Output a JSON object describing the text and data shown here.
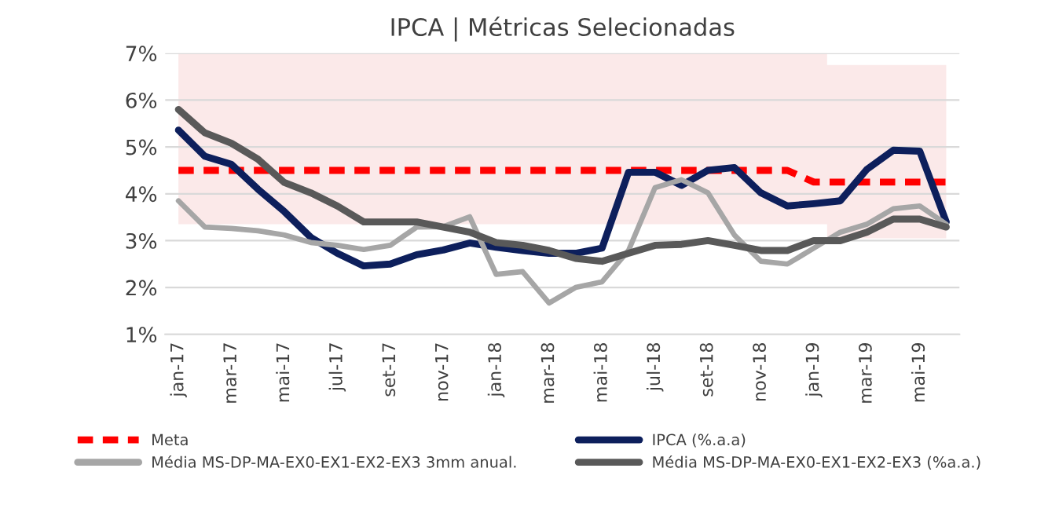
{
  "chart_data": {
    "type": "line",
    "title": "IPCA | Métricas Selecionadas",
    "categories": [
      "jan-17",
      null,
      "mar-17",
      null,
      "mai-17",
      null,
      "jul-17",
      null,
      "set-17",
      null,
      "nov-17",
      null,
      "jan-18",
      null,
      "mar-18",
      null,
      "mai-18",
      null,
      "jul-18",
      null,
      "set-18",
      null,
      "nov-18",
      null,
      "jan-19",
      null,
      "mar-19",
      null,
      "mai-19",
      null
    ],
    "series": [
      {
        "name": "Meta",
        "color": "#ff0000",
        "line_style": "dashed",
        "values": [
          4.5,
          4.5,
          4.5,
          4.5,
          4.5,
          4.5,
          4.5,
          4.5,
          4.5,
          4.5,
          4.5,
          4.5,
          4.5,
          4.5,
          4.5,
          4.5,
          4.5,
          4.5,
          4.5,
          4.5,
          4.5,
          4.5,
          4.5,
          4.5,
          4.25,
          4.25,
          4.25,
          4.25,
          4.25,
          4.25
        ],
        "lower": [
          3.35,
          3.35,
          3.35,
          3.35,
          3.35,
          3.35,
          3.35,
          3.35,
          3.35,
          3.35,
          3.35,
          3.35,
          3.35,
          3.35,
          3.35,
          3.35,
          3.35,
          3.35,
          3.35,
          3.35,
          3.35,
          3.35,
          3.35,
          3.35,
          3.35,
          3.05,
          3.05,
          3.05,
          3.05,
          3.05
        ],
        "upper": [
          7,
          7,
          7,
          7,
          7,
          7,
          7,
          7,
          7,
          7,
          7,
          7,
          7,
          7,
          7,
          7,
          7,
          7,
          7,
          7,
          7,
          7,
          7,
          7,
          7,
          6.75,
          6.75,
          6.75,
          6.75,
          6.75
        ]
      },
      {
        "name": "IPCA (%.a.a)",
        "color": "#0d1f5c",
        "line_style": "solid",
        "values": [
          5.36,
          4.8,
          4.63,
          4.1,
          3.62,
          3.07,
          2.73,
          2.46,
          2.5,
          2.7,
          2.8,
          2.95,
          2.86,
          2.79,
          2.73,
          2.73,
          2.84,
          4.46,
          4.46,
          4.18,
          4.5,
          4.56,
          4.02,
          3.74,
          3.79,
          3.85,
          4.52,
          4.93,
          4.91,
          3.4
        ]
      },
      {
        "name": "Média MS-DP-MA-EX0-EX1-EX2-EX3 3mm anual.",
        "color": "#a6a6a6",
        "line_style": "solid",
        "values": [
          3.85,
          3.29,
          3.26,
          3.21,
          3.12,
          2.96,
          2.9,
          2.81,
          2.9,
          3.29,
          3.3,
          3.51,
          2.28,
          2.34,
          1.67,
          2.0,
          2.12,
          2.79,
          4.13,
          4.3,
          4.02,
          3.12,
          2.56,
          2.5,
          2.84,
          3.18,
          3.35,
          3.68,
          3.74,
          3.35
        ]
      },
      {
        "name": "Média MS-DP-MA-EX0-EX1-EX2-EX3 (%a.a.)",
        "color": "#595959",
        "line_style": "solid",
        "values": [
          5.8,
          5.3,
          5.08,
          4.74,
          4.24,
          4.02,
          3.74,
          3.4,
          3.4,
          3.4,
          3.29,
          3.18,
          2.96,
          2.9,
          2.79,
          2.62,
          2.56,
          2.73,
          2.9,
          2.92,
          3.0,
          2.9,
          2.79,
          2.79,
          3.0,
          3.0,
          3.18,
          3.46,
          3.46,
          3.29
        ]
      }
    ],
    "ylim": [
      1,
      7
    ],
    "yticks": [
      {
        "value": 1,
        "label": "1%"
      },
      {
        "value": 2,
        "label": "2%"
      },
      {
        "value": 3,
        "label": "3%"
      },
      {
        "value": 4,
        "label": "4%"
      },
      {
        "value": 5,
        "label": "5%"
      },
      {
        "value": 6,
        "label": "6%"
      },
      {
        "value": 7,
        "label": "7%"
      }
    ],
    "grid": "y",
    "legend": "bottom"
  }
}
